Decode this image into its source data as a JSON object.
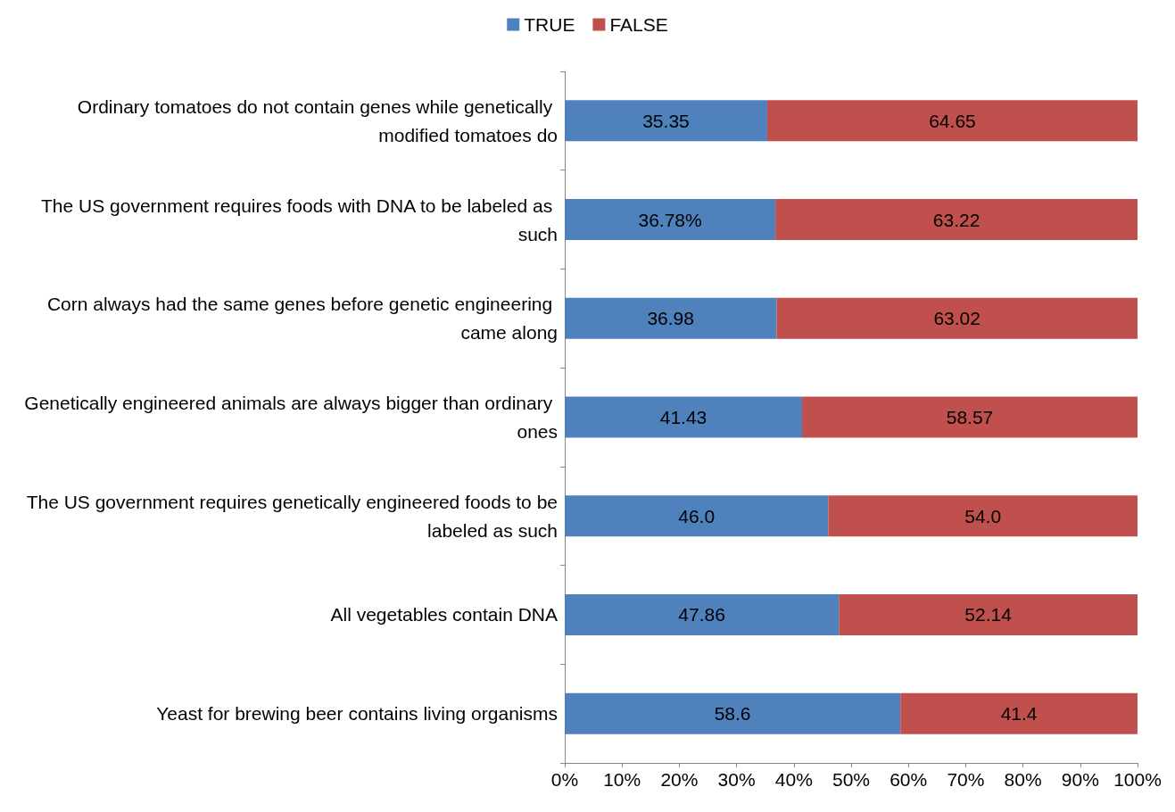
{
  "chart_data": {
    "type": "bar",
    "orientation": "horizontal",
    "stacked": true,
    "legend": "top",
    "categories": [
      "Ordinary tomatoes do not contain genes while genetically modified tomatoes do",
      "The US government requires foods with DNA to be labeled as such",
      "Corn always had the same genes before genetic engineering came along",
      "Genetically engineered animals are always bigger than ordinary ones",
      "The US government requires genetically engineered foods to be labeled as such",
      "All vegetables contain DNA",
      "Yeast for brewing beer contains living organisms"
    ],
    "series": [
      {
        "name": "TRUE",
        "color": "#4f81bd",
        "values": [
          35.35,
          36.78,
          36.98,
          41.43,
          46.0,
          47.86,
          58.6
        ],
        "value_labels": [
          "35.35",
          "36.78%",
          "36.98",
          "41.43",
          "46.0",
          "47.86",
          "58.6"
        ]
      },
      {
        "name": "FALSE",
        "color": "#c0504d",
        "values": [
          64.65,
          63.22,
          63.02,
          58.57,
          54.0,
          52.14,
          41.4
        ],
        "value_labels": [
          "64.65",
          "63.22",
          "63.02",
          "58.57",
          "54.0",
          "52.14",
          "41.4"
        ]
      }
    ],
    "xlim": [
      0,
      100
    ],
    "xticks": [
      {
        "value": 0,
        "label": "0%"
      },
      {
        "value": 10,
        "label": "10%"
      },
      {
        "value": 20,
        "label": "20%"
      },
      {
        "value": 30,
        "label": "30%"
      },
      {
        "value": 40,
        "label": "40%"
      },
      {
        "value": 50,
        "label": "50%"
      },
      {
        "value": 60,
        "label": "60%"
      },
      {
        "value": 70,
        "label": "70%"
      },
      {
        "value": 80,
        "label": "80%"
      },
      {
        "value": 90,
        "label": "90%"
      },
      {
        "value": 100,
        "label": "100%"
      }
    ]
  }
}
